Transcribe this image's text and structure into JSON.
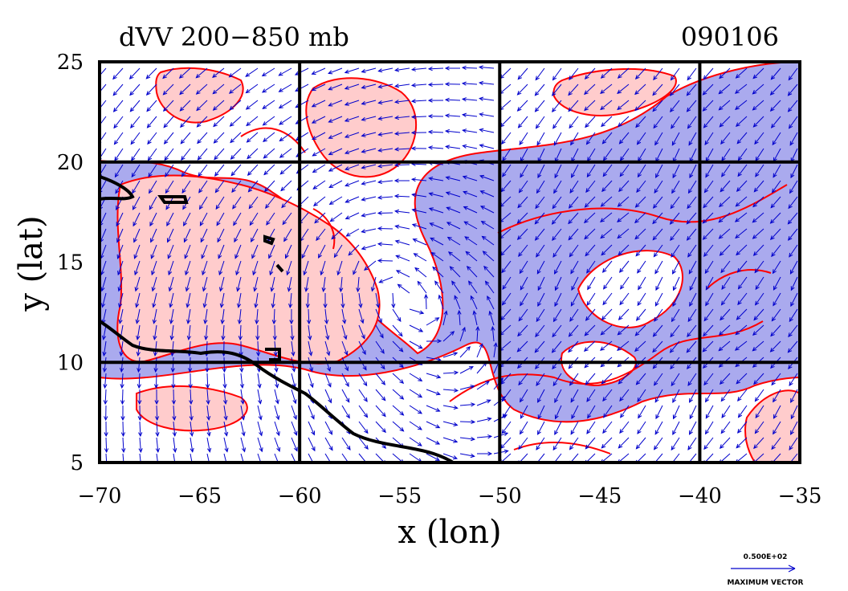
{
  "chart_data": {
    "type": "contour",
    "title": "dVV 200−850 mb",
    "date_label": "090106",
    "xlabel": "x (lon)",
    "ylabel": "y (lat)",
    "xlim": [
      -70,
      -35
    ],
    "ylim": [
      5,
      25
    ],
    "x_ticks": [
      -70,
      -65,
      -60,
      -55,
      -50,
      -45,
      -40,
      -35
    ],
    "x_tick_labels": [
      "−70",
      "−65",
      "−60",
      "−55",
      "−50",
      "−45",
      "−40",
      "−35"
    ],
    "y_ticks": [
      5,
      10,
      15,
      20,
      25
    ],
    "y_tick_labels": [
      "5",
      "10",
      "15",
      "20",
      "25"
    ],
    "grid": true,
    "grid_spacing_lon": 10,
    "grid_spacing_lat": 10,
    "vector_field": "wind shear vectors",
    "reference_vector": {
      "value_label": "0.500E+02",
      "caption": "MAXIMUM VECTOR"
    },
    "colors": {
      "positive_fill": "#ffcccc",
      "negative_fill": "#aaaaee",
      "contour_line": "#ff0000",
      "vector": "#0000cc",
      "coastline": "#000000"
    }
  }
}
